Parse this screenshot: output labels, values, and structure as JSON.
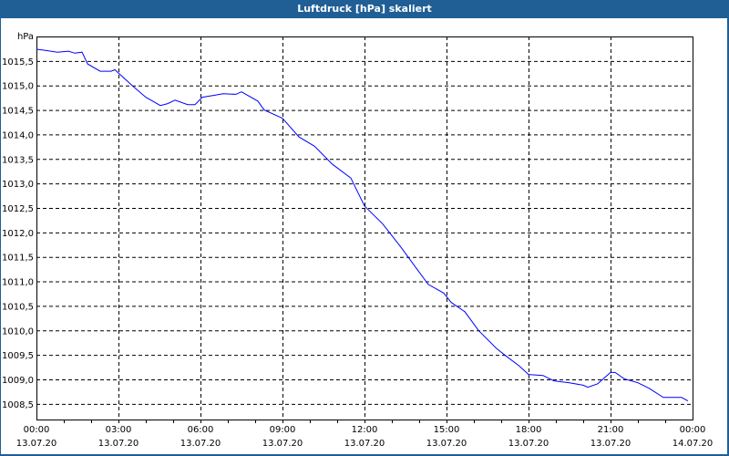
{
  "window": {
    "title": "Luftdruck [hPa] skaliert"
  },
  "chart_data": {
    "type": "line",
    "title": "Luftdruck [hPa] skaliert",
    "ylabel": "hPa",
    "xlabel": "",
    "ylim": [
      1008.18,
      1016.0
    ],
    "xlim_hours": [
      0,
      24
    ],
    "grid": true,
    "y_ticks": [
      {
        "value": 1015.5,
        "label": "1015,5"
      },
      {
        "value": 1015.0,
        "label": "1015,0"
      },
      {
        "value": 1014.5,
        "label": "1014,5"
      },
      {
        "value": 1014.0,
        "label": "1014,0"
      },
      {
        "value": 1013.5,
        "label": "1013,5"
      },
      {
        "value": 1013.0,
        "label": "1013,0"
      },
      {
        "value": 1012.5,
        "label": "1012,5"
      },
      {
        "value": 1012.0,
        "label": "1012,0"
      },
      {
        "value": 1011.5,
        "label": "1011,5"
      },
      {
        "value": 1011.0,
        "label": "1011,0"
      },
      {
        "value": 1010.5,
        "label": "1010,5"
      },
      {
        "value": 1010.0,
        "label": "1010,0"
      },
      {
        "value": 1009.5,
        "label": "1009,5"
      },
      {
        "value": 1009.0,
        "label": "1009,0"
      },
      {
        "value": 1008.5,
        "label": "1008,5"
      }
    ],
    "x_ticks": [
      {
        "hour": 0,
        "time": "00:00",
        "date": "13.07.20"
      },
      {
        "hour": 3,
        "time": "03:00",
        "date": "13.07.20"
      },
      {
        "hour": 6,
        "time": "06:00",
        "date": "13.07.20"
      },
      {
        "hour": 9,
        "time": "09:00",
        "date": "13.07.20"
      },
      {
        "hour": 12,
        "time": "12:00",
        "date": "13.07.20"
      },
      {
        "hour": 15,
        "time": "15:00",
        "date": "13.07.20"
      },
      {
        "hour": 18,
        "time": "18:00",
        "date": "13.07.20"
      },
      {
        "hour": 21,
        "time": "21:00",
        "date": "13.07.20"
      },
      {
        "hour": 24,
        "time": "00:00",
        "date": "14.07.20"
      }
    ],
    "series": [
      {
        "name": "Luftdruck",
        "color": "#0000ff",
        "x": [
          0,
          0.27,
          0.77,
          1.17,
          1.4,
          1.67,
          1.87,
          2.33,
          2.73,
          2.87,
          3.5,
          4.0,
          4.53,
          4.8,
          5.07,
          5.53,
          5.8,
          6.07,
          6.5,
          6.83,
          7.3,
          7.5,
          8.1,
          8.33,
          9.0,
          9.6,
          10.17,
          10.83,
          11.5,
          12.0,
          12.67,
          13.33,
          13.83,
          14.33,
          14.9,
          15.17,
          15.67,
          16.17,
          16.83,
          17.17,
          17.67,
          18.0,
          18.53,
          18.93,
          19.5,
          20.0,
          20.17,
          20.53,
          21.0,
          21.17,
          21.5,
          22.0,
          22.4,
          22.93,
          23.6,
          23.83
        ],
        "y": [
          1015.74,
          1015.72,
          1015.68,
          1015.7,
          1015.66,
          1015.68,
          1015.44,
          1015.29,
          1015.29,
          1015.32,
          1015.0,
          1014.76,
          1014.59,
          1014.63,
          1014.7,
          1014.61,
          1014.61,
          1014.76,
          1014.8,
          1014.83,
          1014.82,
          1014.87,
          1014.68,
          1014.5,
          1014.33,
          1013.95,
          1013.76,
          1013.39,
          1013.11,
          1012.54,
          1012.17,
          1011.7,
          1011.32,
          1010.94,
          1010.76,
          1010.57,
          1010.38,
          1010.0,
          1009.63,
          1009.48,
          1009.27,
          1009.1,
          1009.08,
          1008.97,
          1008.93,
          1008.88,
          1008.84,
          1008.91,
          1009.14,
          1009.14,
          1009.01,
          1008.93,
          1008.82,
          1008.63,
          1008.63,
          1008.56
        ]
      }
    ]
  }
}
